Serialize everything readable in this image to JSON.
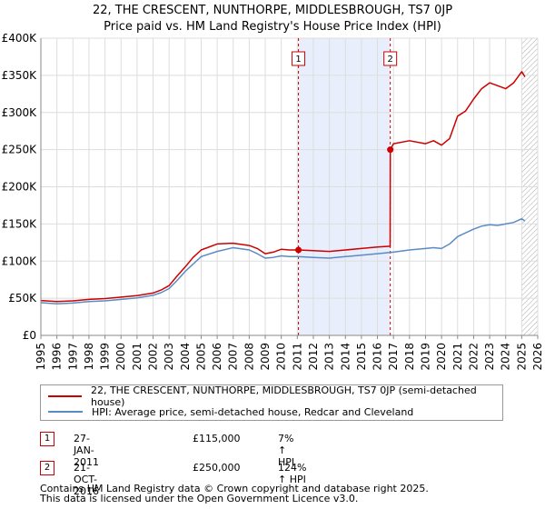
{
  "chart_data": {
    "type": "line",
    "title": "22, THE CRESCENT, NUNTHORPE, MIDDLESBROUGH, TS7 0JP",
    "subtitle": "Price paid vs. HM Land Registry's House Price Index (HPI)",
    "xlabel": "",
    "ylabel": "",
    "xlim": [
      1995,
      2026
    ],
    "ylim": [
      0,
      400000
    ],
    "x_ticks": [
      "1995",
      "1996",
      "1997",
      "1998",
      "1999",
      "2000",
      "2001",
      "2002",
      "2003",
      "2004",
      "2005",
      "2006",
      "2007",
      "2008",
      "2009",
      "2010",
      "2011",
      "2012",
      "2013",
      "2014",
      "2015",
      "2016",
      "2017",
      "2018",
      "2019",
      "2020",
      "2021",
      "2022",
      "2023",
      "2024",
      "2025",
      "2026"
    ],
    "y_ticks": [
      {
        "value": 0,
        "label": "£0"
      },
      {
        "value": 50000,
        "label": "£50K"
      },
      {
        "value": 100000,
        "label": "£100K"
      },
      {
        "value": 150000,
        "label": "£150K"
      },
      {
        "value": 200000,
        "label": "£200K"
      },
      {
        "value": 250000,
        "label": "£250K"
      },
      {
        "value": 300000,
        "label": "£300K"
      },
      {
        "value": 350000,
        "label": "£350K"
      },
      {
        "value": 400000,
        "label": "£400K"
      }
    ],
    "grid": true,
    "shaded_region": {
      "from": 2011.07,
      "to": 2016.8
    },
    "hatched_region_from": 2025.0,
    "series": [
      {
        "name": "22, THE CRESCENT, NUNTHORPE, MIDDLESBROUGH, TS7 0JP (semi-detached house)",
        "color": "#cc0000",
        "x": [
          1995,
          1996,
          1997,
          1998,
          1999,
          2000,
          2001,
          2002,
          2002.5,
          2003,
          2003.5,
          2004,
          2004.5,
          2005,
          2006,
          2007,
          2008,
          2008.5,
          2009,
          2009.5,
          2010,
          2010.5,
          2011.07,
          2012,
          2013,
          2014,
          2015,
          2016,
          2016.79,
          2016.8,
          2017,
          2018,
          2019,
          2019.5,
          2020,
          2020.5,
          2021,
          2021.5,
          2022,
          2022.5,
          2023,
          2023.5,
          2024,
          2024.5,
          2025,
          2025.2
        ],
        "values": [
          47000,
          45500,
          46500,
          48500,
          49500,
          51500,
          53500,
          57000,
          61000,
          67000,
          80000,
          92000,
          105000,
          115000,
          123000,
          124000,
          121000,
          117000,
          110000,
          112000,
          116000,
          115000,
          115000,
          114000,
          113000,
          115000,
          117000,
          119000,
          120000,
          250000,
          258000,
          262000,
          258000,
          262000,
          256000,
          265000,
          295000,
          302000,
          318000,
          332000,
          340000,
          336000,
          332000,
          340000,
          355000,
          348000
        ]
      },
      {
        "name": "HPI: Average price, semi-detached house, Redcar and Cleveland",
        "color": "#5b8bc4",
        "x": [
          1995,
          1996,
          1997,
          1998,
          1999,
          2000,
          2001,
          2002,
          2002.5,
          2003,
          2003.5,
          2004,
          2004.5,
          2005,
          2006,
          2007,
          2008,
          2008.5,
          2009,
          2009.5,
          2010,
          2010.5,
          2011,
          2012,
          2013,
          2014,
          2015,
          2016,
          2017,
          2018,
          2019,
          2019.5,
          2020,
          2020.5,
          2021,
          2021.5,
          2022,
          2022.5,
          2023,
          2023.5,
          2024,
          2024.5,
          2025,
          2025.2
        ],
        "values": [
          44000,
          42500,
          43500,
          45500,
          46500,
          48500,
          50500,
          54000,
          57500,
          63000,
          74000,
          86000,
          96000,
          106000,
          113000,
          118000,
          115000,
          110000,
          104000,
          105000,
          107000,
          106000,
          106000,
          105000,
          104000,
          106000,
          108000,
          110000,
          112000,
          115000,
          117000,
          118000,
          117000,
          123000,
          133000,
          138000,
          143000,
          147000,
          149000,
          148000,
          150000,
          152000,
          157000,
          154000
        ]
      }
    ],
    "markers": [
      {
        "label": "1",
        "x": 2011.07,
        "value": 115000
      },
      {
        "label": "2",
        "x": 2016.8,
        "value": 250000
      }
    ]
  },
  "legend": [
    {
      "label": "22, THE CRESCENT, NUNTHORPE, MIDDLESBROUGH, TS7 0JP (semi-detached house)",
      "color": "#cc0000"
    },
    {
      "label": "HPI: Average price, semi-detached house, Redcar and Cleveland",
      "color": "#5b8bc4"
    }
  ],
  "sales": [
    {
      "num": "1",
      "date": "27-JAN-2011",
      "price": "£115,000",
      "hpi": "7% ↑ HPI"
    },
    {
      "num": "2",
      "date": "21-OCT-2016",
      "price": "£250,000",
      "hpi": "124% ↑ HPI"
    }
  ],
  "footer": {
    "line1": "Contains HM Land Registry data © Crown copyright and database right 2025.",
    "line2": "This data is licensed under the Open Government Licence v3.0."
  }
}
